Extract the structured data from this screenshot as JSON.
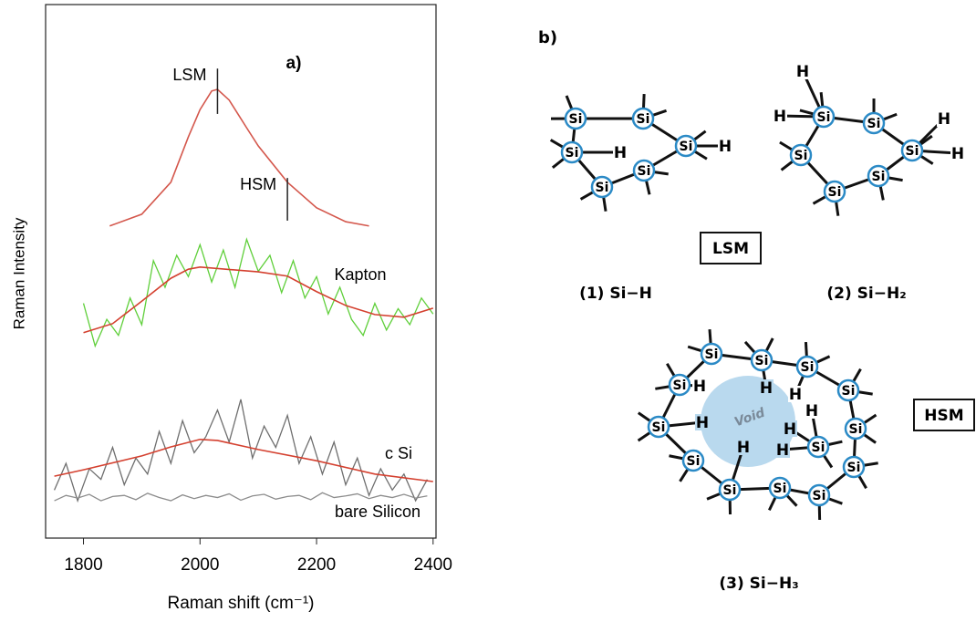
{
  "chart_data": {
    "type": "line",
    "panel_label": "a)",
    "x_label": "Raman shift (cm⁻¹)",
    "y_label": "Raman Intensity",
    "xlim": [
      1735,
      2405
    ],
    "xticks": [
      1800,
      2000,
      2200,
      2400
    ],
    "ylim": [
      0,
      100
    ],
    "series": [
      {
        "color": "#d4574c",
        "x": [
          1845,
          1900,
          1950,
          1980,
          2000,
          2020,
          2030,
          2050,
          2080,
          2100,
          2150,
          2200,
          2250,
          2290
        ],
        "values": [
          58.5,
          60.7,
          66.7,
          75.2,
          80.3,
          83.8,
          84.1,
          82.1,
          76.9,
          73.5,
          66.7,
          61.9,
          59.3,
          58.5
        ]
      },
      {
        "name": "Kapton",
        "color": "#5fcf3a",
        "x": [
          1800,
          1820,
          1840,
          1860,
          1880,
          1900,
          1920,
          1940,
          1960,
          1980,
          2000,
          2020,
          2040,
          2060,
          2080,
          2100,
          2120,
          2140,
          2160,
          2180,
          2200,
          2220,
          2240,
          2260,
          2280,
          2300,
          2320,
          2340,
          2360,
          2380,
          2400
        ],
        "values": [
          44,
          36,
          41,
          38,
          45,
          40,
          52,
          47,
          53,
          49,
          55,
          48,
          54,
          47,
          56,
          50,
          53,
          46,
          52,
          45,
          49,
          42,
          47,
          41,
          38,
          44,
          39,
          43,
          40,
          45,
          42
        ]
      },
      {
        "color": "#d4402f",
        "x": [
          1800,
          1850,
          1900,
          1950,
          1980,
          2000,
          2100,
          2150,
          2200,
          2250,
          2300,
          2350,
          2400
        ],
        "values": [
          38.5,
          40.2,
          44.4,
          48.7,
          50.4,
          50.8,
          49.9,
          49.1,
          46.2,
          43.6,
          41.9,
          41.4,
          43.1
        ]
      },
      {
        "name": "c Si",
        "color": "#6e6e6e",
        "x": [
          1750,
          1770,
          1790,
          1810,
          1830,
          1850,
          1870,
          1890,
          1910,
          1930,
          1950,
          1970,
          1990,
          2010,
          2030,
          2050,
          2070,
          2090,
          2110,
          2130,
          2150,
          2170,
          2190,
          2210,
          2230,
          2250,
          2270,
          2290,
          2310,
          2330,
          2350,
          2370,
          2390
        ],
        "values": [
          9,
          14,
          7,
          13,
          11,
          17,
          10,
          15,
          12,
          20,
          14,
          22,
          16,
          19,
          24,
          18,
          26,
          15,
          21,
          17,
          23,
          14,
          19,
          12,
          18,
          10,
          15,
          8,
          13,
          9,
          12,
          7,
          11
        ]
      },
      {
        "color": "#d4402f",
        "x": [
          1750,
          1800,
          1900,
          1950,
          2000,
          2030,
          2100,
          2200,
          2300,
          2400
        ],
        "values": [
          11.6,
          12.8,
          15.4,
          17.1,
          18.5,
          18.3,
          16.6,
          14.5,
          12.0,
          10.6
        ]
      },
      {
        "name": "bare Silicon",
        "color": "#8c8c8c",
        "x": [
          1750,
          1770,
          1790,
          1810,
          1830,
          1850,
          1870,
          1890,
          1910,
          1930,
          1950,
          1970,
          1990,
          2010,
          2030,
          2050,
          2070,
          2090,
          2110,
          2130,
          2150,
          2170,
          2190,
          2210,
          2230,
          2250,
          2270,
          2290,
          2310,
          2330,
          2350,
          2370,
          2390
        ],
        "values": [
          7,
          8,
          7.5,
          8.2,
          7,
          7.8,
          8,
          7.2,
          8.4,
          7.6,
          7,
          8.1,
          7.4,
          8,
          7.6,
          8.3,
          7.1,
          7.9,
          8.2,
          7.3,
          7.8,
          8,
          7.2,
          8.5,
          7.6,
          7.9,
          8.3,
          7.4,
          8,
          7.6,
          8.2,
          7.5,
          7.9
        ]
      }
    ],
    "annotations": [
      {
        "text": "LSM",
        "x": 2030,
        "y": [
          79.5,
          88
        ]
      },
      {
        "text": "HSM",
        "x": 2150,
        "y": [
          59.5,
          67.5
        ]
      }
    ]
  },
  "diagram": {
    "panel_label": "b)",
    "lsm_box": "LSM",
    "hsm_box": "HSM",
    "void_label": "Void",
    "molecules": [
      {
        "caption": "(1) Si−H",
        "atoms": [
          "Si",
          "Si",
          "Si",
          "Si",
          "Si",
          "Si"
        ],
        "hydrogens": [
          "H",
          "H"
        ]
      },
      {
        "caption": "(2) Si−H₂",
        "atoms": [
          "Si",
          "Si",
          "Si",
          "Si",
          "Si",
          "Si"
        ],
        "hydrogens": [
          "H",
          "H",
          "H",
          "H"
        ]
      },
      {
        "caption": "(3) Si−H₃",
        "atoms": [
          "Si",
          "Si",
          "Si",
          "Si",
          "Si",
          "Si",
          "Si",
          "Si",
          "Si",
          "Si",
          "Si",
          "Si",
          "Si"
        ],
        "hydrogens": [
          "H",
          "H",
          "H",
          "H",
          "H",
          "H",
          "H",
          "H"
        ]
      }
    ]
  }
}
